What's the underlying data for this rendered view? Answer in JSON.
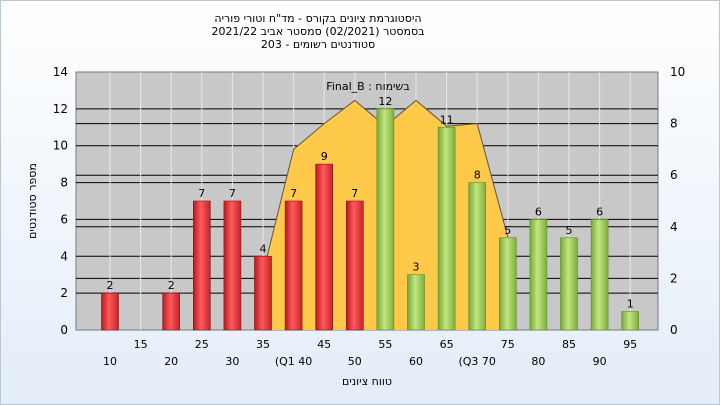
{
  "chart_data": {
    "type": "bar",
    "title_lines": [
      "היסטוגרמת ציונים בקורס - מד\"ח וטורי פוריה",
      "בסמסטר  (02/2021)  סמסטר אביב 2021/22",
      "סטודנטים רשומים - 203"
    ],
    "ylabel": "מספר סטודנטים",
    "xlabel": "טווח ציונים",
    "annotation": "Final_B : בשימוח",
    "ylim": [
      0,
      14
    ],
    "y_ticks": [
      0,
      2,
      4,
      6,
      8,
      10,
      12,
      14
    ],
    "y2lim": [
      0,
      10
    ],
    "y2_ticks": [
      0,
      2,
      4,
      6,
      8,
      10
    ],
    "grid": true,
    "categories": [
      "10",
      "15",
      "20",
      "25",
      "30",
      "35",
      "40",
      "45",
      "50",
      "55",
      "60",
      "65",
      "70",
      "75",
      "80",
      "85",
      "90",
      "95"
    ],
    "category_labels": [
      "10",
      "15",
      "20",
      "25",
      "30",
      "35",
      "(Q1 40",
      "45",
      "50",
      "55",
      "60",
      "65",
      "(Q3 70",
      "75",
      "80",
      "85",
      "90",
      "95"
    ],
    "series": [
      {
        "values": [
          2,
          0,
          2,
          7,
          7,
          4,
          7,
          9,
          7,
          12,
          3,
          11,
          8,
          5,
          6,
          5,
          6,
          1
        ],
        "value_labels": [
          "2",
          "",
          "2",
          "7",
          "7",
          "4",
          "7",
          "9",
          "7",
          "12",
          "3",
          "11",
          "8",
          "5",
          "6",
          "5",
          "6",
          "1"
        ],
        "colors": [
          "red",
          "red",
          "red",
          "red",
          "red",
          "red",
          "red",
          "red",
          "red",
          "green",
          "green",
          "green",
          "green",
          "green",
          "green",
          "green",
          "green",
          "green"
        ]
      }
    ],
    "area_series": {
      "axis": "right",
      "x": [
        "35",
        "40",
        "45",
        "50",
        "55",
        "60",
        "65",
        "70",
        "75"
      ],
      "values": [
        2.2,
        7.0,
        8.0,
        8.9,
        7.9,
        8.9,
        7.9,
        8.0,
        3.6
      ]
    },
    "colors": {
      "red_bar": "#e8393c",
      "green_bar": "#9ccc4c",
      "area": "#ffc94a",
      "plot_bg": "#c8c8c8"
    }
  }
}
